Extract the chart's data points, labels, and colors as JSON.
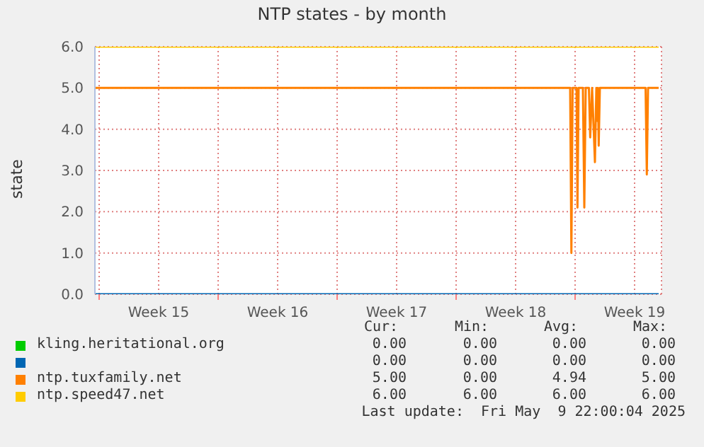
{
  "chart_data": {
    "type": "line",
    "title": "NTP states - by month",
    "ylabel": "state",
    "xlim": [
      "2025-04-06T18:00",
      "2025-05-10T02:00"
    ],
    "xticks": [
      {
        "value": "2025-04-07T00:00",
        "label": null
      },
      {
        "value": "2025-04-10T12:00",
        "label": "Week 15"
      },
      {
        "value": "2025-04-14T00:00",
        "label": null
      },
      {
        "value": "2025-04-17T12:00",
        "label": "Week 16"
      },
      {
        "value": "2025-04-21T00:00",
        "label": null
      },
      {
        "value": "2025-04-24T12:00",
        "label": "Week 17"
      },
      {
        "value": "2025-04-28T00:00",
        "label": null
      },
      {
        "value": "2025-05-01T12:00",
        "label": "Week 18"
      },
      {
        "value": "2025-05-05T00:00",
        "label": null
      },
      {
        "value": "2025-05-08T12:00",
        "label": "Week 19"
      }
    ],
    "ylim": [
      0,
      6
    ],
    "yticks": [
      {
        "value": 0,
        "label": "0.0"
      },
      {
        "value": 1,
        "label": "1.0"
      },
      {
        "value": 2,
        "label": "2.0"
      },
      {
        "value": 3,
        "label": "3.0"
      },
      {
        "value": 4,
        "label": "4.0"
      },
      {
        "value": 5,
        "label": "5.0"
      },
      {
        "value": 6,
        "label": "6.0"
      }
    ],
    "grid": true,
    "legend": "bottom",
    "series": [
      {
        "name": "kling.heritational.org",
        "color": "#00cc00"
      },
      {
        "color": "#0066b3",
        "x": [
          "2025-04-06T18:00",
          "2025-05-09T22:00"
        ],
        "values": [
          0,
          0
        ]
      },
      {
        "name": "ntp.tuxfamily.net",
        "color": "#ff8000",
        "x": [
          "2025-04-06T18:00",
          "2025-05-04T17:00",
          "2025-05-04T18:45",
          "2025-05-04T20:30",
          "2025-05-05T02:00",
          "2025-05-05T03:20",
          "2025-05-05T05:00",
          "2025-05-05T11:00",
          "2025-05-05T13:00",
          "2025-05-05T15:00",
          "2025-05-05T19:30",
          "2025-05-05T21:20",
          "2025-05-06T00:00",
          "2025-05-06T04:00",
          "2025-05-06T06:00",
          "2025-05-06T07:15",
          "2025-05-06T08:15",
          "2025-05-06T09:20",
          "2025-05-06T11:00",
          "2025-05-09T03:30",
          "2025-05-09T05:15",
          "2025-05-09T07:00",
          "2025-05-09T22:00"
        ],
        "values": [
          5,
          5,
          1.0,
          5,
          5,
          2.1,
          5,
          5,
          2.1,
          5,
          5,
          3.8,
          5,
          3.2,
          5,
          4.2,
          5,
          3.6,
          5,
          5,
          2.9,
          5,
          5
        ]
      },
      {
        "name": "ntp.speed47.net",
        "color": "#ffcc00",
        "x": [
          "2025-04-06T18:00",
          "2025-05-09T22:00"
        ],
        "values": [
          6,
          6
        ]
      }
    ],
    "annotations": [
      "Cur:",
      "Min:",
      "Avg:",
      "Max:",
      "0.00",
      "0.00",
      "0.00",
      "0.00",
      "0.00",
      "0.00",
      "0.00",
      "0.00",
      "5.00",
      "0.00",
      "4.94",
      "5.00",
      "6.00",
      "6.00",
      "6.00",
      "6.00",
      "Last update:  Fri May  9 22:00:04 2025"
    ]
  }
}
